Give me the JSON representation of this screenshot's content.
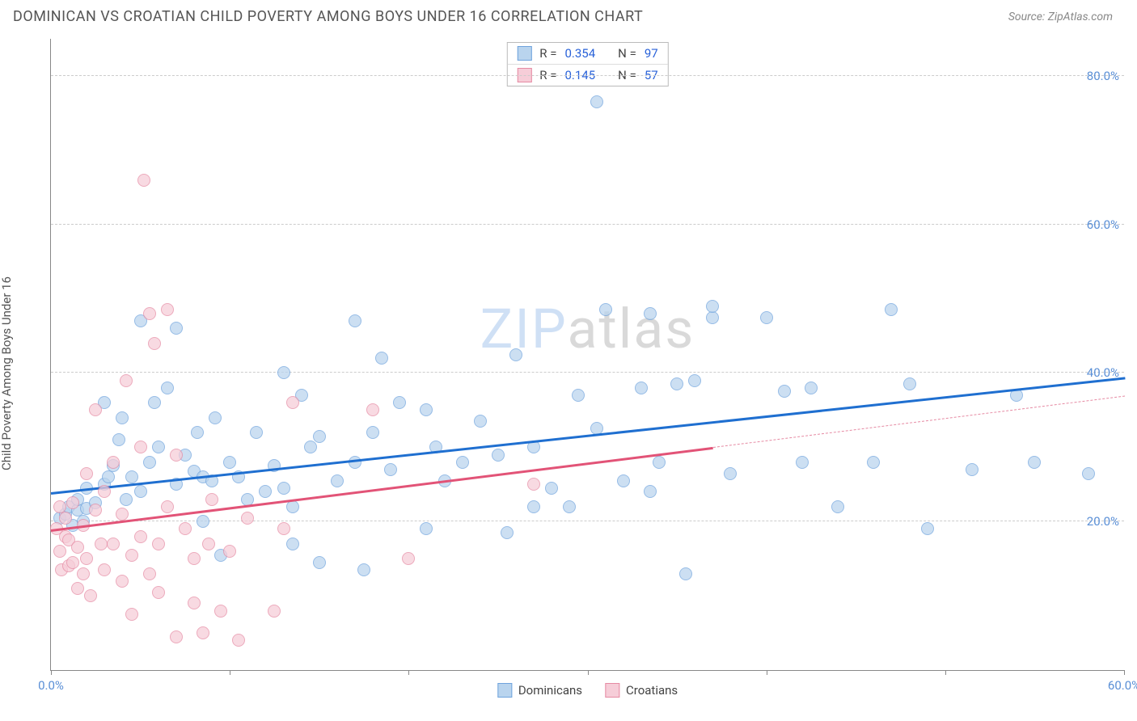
{
  "title": "DOMINICAN VS CROATIAN CHILD POVERTY AMONG BOYS UNDER 16 CORRELATION CHART",
  "source": "Source: ZipAtlas.com",
  "yaxis_label": "Child Poverty Among Boys Under 16",
  "watermark_text": "ZIPatlas",
  "watermark_colors": [
    "#cfe0f5",
    "#cfe0f5",
    "#cfe0f5",
    "#d9d9d9",
    "#d9d9d9",
    "#d9d9d9",
    "#d9d9d9",
    "#d9d9d9"
  ],
  "series": [
    {
      "key": "dominicans",
      "label": "Dominicans",
      "fill": "#b9d4ee",
      "stroke": "#6fa3dd",
      "reg_color": "#1f6fd0",
      "R": "0.354",
      "N": "97",
      "reg_y_at_xmin": 24.0,
      "reg_y_at_xmax": 39.5,
      "data_xmax": 60.0,
      "points": [
        [
          0.5,
          20.5
        ],
        [
          0.8,
          21.0
        ],
        [
          1.0,
          22.0
        ],
        [
          1.2,
          19.5
        ],
        [
          1.5,
          21.5
        ],
        [
          1.5,
          23.0
        ],
        [
          1.8,
          20.0
        ],
        [
          2.0,
          21.8
        ],
        [
          2.0,
          24.5
        ],
        [
          2.5,
          22.5
        ],
        [
          3.0,
          36.0
        ],
        [
          3.0,
          25.0
        ],
        [
          3.2,
          26.0
        ],
        [
          3.5,
          27.5
        ],
        [
          3.8,
          31.0
        ],
        [
          4.0,
          34.0
        ],
        [
          4.2,
          23.0
        ],
        [
          4.5,
          26.0
        ],
        [
          5.0,
          24.0
        ],
        [
          5.0,
          47.0
        ],
        [
          5.5,
          28.0
        ],
        [
          5.8,
          36.0
        ],
        [
          6.0,
          30.0
        ],
        [
          6.5,
          38.0
        ],
        [
          7.0,
          25.0
        ],
        [
          7.0,
          46.0
        ],
        [
          7.5,
          29.0
        ],
        [
          8.0,
          26.8
        ],
        [
          8.2,
          32.0
        ],
        [
          8.5,
          20.0
        ],
        [
          8.5,
          26.0
        ],
        [
          9.0,
          25.5
        ],
        [
          9.2,
          34.0
        ],
        [
          9.5,
          15.5
        ],
        [
          10.0,
          28.0
        ],
        [
          10.5,
          26.0
        ],
        [
          11.0,
          23.0
        ],
        [
          11.5,
          32.0
        ],
        [
          12.0,
          24.0
        ],
        [
          12.5,
          27.5
        ],
        [
          13.0,
          24.5
        ],
        [
          13.0,
          40.0
        ],
        [
          13.5,
          17.0
        ],
        [
          13.5,
          22.0
        ],
        [
          14.0,
          37.0
        ],
        [
          14.5,
          30.0
        ],
        [
          15.0,
          14.5
        ],
        [
          15.0,
          31.5
        ],
        [
          16.0,
          25.5
        ],
        [
          17.0,
          28.0
        ],
        [
          17.0,
          47.0
        ],
        [
          17.5,
          13.5
        ],
        [
          18.0,
          32.0
        ],
        [
          18.5,
          42.0
        ],
        [
          19.0,
          27.0
        ],
        [
          19.5,
          36.0
        ],
        [
          21.0,
          19.0
        ],
        [
          21.0,
          35.0
        ],
        [
          21.5,
          30.0
        ],
        [
          22.0,
          25.5
        ],
        [
          23.0,
          28.0
        ],
        [
          24.0,
          33.5
        ],
        [
          25.0,
          29.0
        ],
        [
          25.5,
          18.5
        ],
        [
          26.0,
          42.5
        ],
        [
          27.0,
          22.0
        ],
        [
          27.0,
          30.0
        ],
        [
          28.0,
          24.5
        ],
        [
          29.0,
          22.0
        ],
        [
          29.5,
          37.0
        ],
        [
          30.5,
          76.5
        ],
        [
          30.5,
          32.5
        ],
        [
          31.0,
          48.5
        ],
        [
          32.0,
          25.5
        ],
        [
          33.0,
          38.0
        ],
        [
          33.5,
          48.0
        ],
        [
          33.5,
          24.0
        ],
        [
          34.0,
          28.0
        ],
        [
          35.0,
          38.5
        ],
        [
          35.5,
          13.0
        ],
        [
          36.0,
          39.0
        ],
        [
          37.0,
          47.5
        ],
        [
          37.0,
          49.0
        ],
        [
          38.0,
          26.5
        ],
        [
          40.0,
          47.5
        ],
        [
          41.0,
          37.5
        ],
        [
          42.0,
          28.0
        ],
        [
          42.5,
          38.0
        ],
        [
          44.0,
          22.0
        ],
        [
          46.0,
          28.0
        ],
        [
          47.0,
          48.5
        ],
        [
          48.0,
          38.5
        ],
        [
          49.0,
          19.0
        ],
        [
          51.5,
          27.0
        ],
        [
          54.0,
          37.0
        ],
        [
          55.0,
          28.0
        ],
        [
          58.0,
          26.5
        ]
      ]
    },
    {
      "key": "croatians",
      "label": "Croatians",
      "fill": "#f6cdd8",
      "stroke": "#e68aa3",
      "reg_color": "#e25377",
      "R": "0.145",
      "N": "57",
      "reg_y_at_xmin": 19.0,
      "reg_y_at_xmax": 37.0,
      "data_xmax": 37.0,
      "points": [
        [
          0.3,
          19.0
        ],
        [
          0.5,
          22.0
        ],
        [
          0.5,
          16.0
        ],
        [
          0.6,
          13.5
        ],
        [
          0.8,
          18.0
        ],
        [
          0.8,
          20.5
        ],
        [
          1.0,
          14.0
        ],
        [
          1.0,
          17.5
        ],
        [
          1.2,
          14.5
        ],
        [
          1.2,
          22.5
        ],
        [
          1.5,
          11.0
        ],
        [
          1.5,
          16.5
        ],
        [
          1.8,
          13.0
        ],
        [
          1.8,
          19.5
        ],
        [
          2.0,
          15.0
        ],
        [
          2.0,
          26.5
        ],
        [
          2.2,
          10.0
        ],
        [
          2.5,
          21.5
        ],
        [
          2.5,
          35.0
        ],
        [
          2.8,
          17.0
        ],
        [
          3.0,
          13.5
        ],
        [
          3.0,
          24.0
        ],
        [
          3.5,
          28.0
        ],
        [
          3.5,
          17.0
        ],
        [
          4.0,
          12.0
        ],
        [
          4.0,
          21.0
        ],
        [
          4.2,
          39.0
        ],
        [
          4.5,
          7.5
        ],
        [
          4.5,
          15.5
        ],
        [
          5.0,
          30.0
        ],
        [
          5.0,
          18.0
        ],
        [
          5.2,
          66.0
        ],
        [
          5.5,
          48.0
        ],
        [
          5.5,
          13.0
        ],
        [
          5.8,
          44.0
        ],
        [
          6.0,
          17.0
        ],
        [
          6.0,
          10.5
        ],
        [
          6.5,
          48.5
        ],
        [
          6.5,
          22.0
        ],
        [
          7.0,
          4.5
        ],
        [
          7.0,
          29.0
        ],
        [
          7.5,
          19.0
        ],
        [
          8.0,
          9.0
        ],
        [
          8.0,
          15.0
        ],
        [
          8.5,
          5.0
        ],
        [
          8.8,
          17.0
        ],
        [
          9.0,
          23.0
        ],
        [
          9.5,
          8.0
        ],
        [
          10.0,
          16.0
        ],
        [
          10.5,
          4.0
        ],
        [
          11.0,
          20.5
        ],
        [
          12.5,
          8.0
        ],
        [
          13.0,
          19.0
        ],
        [
          13.5,
          36.0
        ],
        [
          18.0,
          35.0
        ],
        [
          20.0,
          15.0
        ],
        [
          27.0,
          25.0
        ]
      ]
    }
  ],
  "chart": {
    "xlim": [
      0,
      60
    ],
    "ylim": [
      0,
      85
    ],
    "xtick_step": 10,
    "ytick_step": 20,
    "xtick_labels": {
      "0": "0.0%",
      "60": "60.0%"
    },
    "ytick_labels": {
      "20": "20.0%",
      "40": "40.0%",
      "60": "60.0%",
      "80": "80.0%"
    },
    "point_radius": 8,
    "point_opacity": 0.72,
    "background": "#ffffff"
  },
  "legend_top": {
    "r_label": "R =",
    "n_label": "N ="
  }
}
